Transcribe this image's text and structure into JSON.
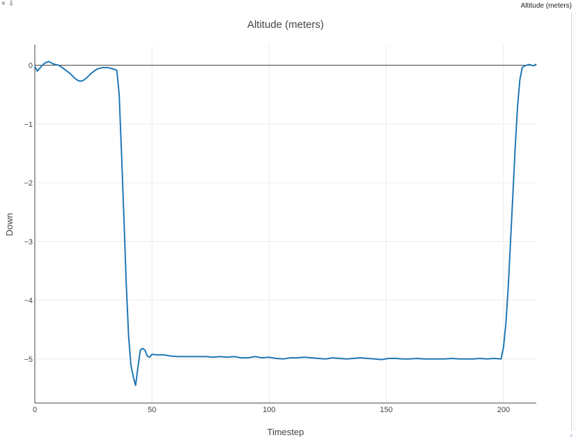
{
  "window": {
    "label": "Altitude (meters)",
    "close_icon": "x-icon",
    "dock_icon": "pin-down-icon",
    "resize_icon": "resize-grip-icon"
  },
  "chart_data": {
    "type": "line",
    "title": "Altitude (meters)",
    "xlabel": "Timestep",
    "ylabel": "Down",
    "xlim": [
      0,
      214
    ],
    "ylim": [
      -5.75,
      0.35
    ],
    "xticks": [
      0,
      50,
      100,
      150,
      200
    ],
    "yticks": [
      0,
      -1,
      -2,
      -3,
      -4,
      -5
    ],
    "ytick_labels": [
      "0",
      "−1",
      "−2",
      "−3",
      "−4",
      "−5"
    ],
    "grid": true,
    "line_color": "#1f77b4",
    "zero_line": true,
    "series": [
      {
        "x": [
          0,
          1,
          2,
          3,
          4,
          5,
          6,
          7,
          8,
          9,
          10,
          11,
          12,
          13,
          14,
          15,
          16,
          17,
          18,
          19,
          20,
          21,
          22,
          23,
          24,
          25,
          26,
          27,
          28,
          29,
          30,
          31,
          32,
          33,
          34,
          35,
          36,
          37,
          38,
          39,
          40,
          41,
          42,
          43,
          44,
          45,
          46,
          47,
          48,
          49,
          50,
          52,
          55,
          58,
          61,
          64,
          67,
          70,
          73,
          76,
          79,
          82,
          85,
          88,
          91,
          94,
          97,
          100,
          103,
          106,
          109,
          112,
          115,
          118,
          121,
          124,
          127,
          130,
          133,
          136,
          139,
          142,
          145,
          148,
          151,
          154,
          157,
          160,
          163,
          166,
          169,
          172,
          175,
          178,
          181,
          184,
          187,
          190,
          193,
          196,
          199,
          200,
          201,
          202,
          203,
          204,
          205,
          206,
          207,
          208,
          209,
          210,
          211,
          212,
          213,
          214
        ],
        "y": [
          -0.02,
          -0.1,
          -0.06,
          -0.01,
          0.03,
          0.05,
          0.06,
          0.04,
          0.02,
          0.01,
          0.0,
          -0.02,
          -0.05,
          -0.08,
          -0.11,
          -0.14,
          -0.18,
          -0.22,
          -0.25,
          -0.27,
          -0.27,
          -0.25,
          -0.22,
          -0.18,
          -0.14,
          -0.11,
          -0.08,
          -0.06,
          -0.05,
          -0.04,
          -0.04,
          -0.04,
          -0.05,
          -0.06,
          -0.07,
          -0.09,
          -0.5,
          -1.5,
          -2.6,
          -3.7,
          -4.6,
          -5.1,
          -5.3,
          -5.45,
          -5.15,
          -4.85,
          -4.82,
          -4.85,
          -4.95,
          -4.97,
          -4.92,
          -4.93,
          -4.93,
          -4.95,
          -4.96,
          -4.96,
          -4.96,
          -4.96,
          -4.96,
          -4.97,
          -4.96,
          -4.97,
          -4.96,
          -4.98,
          -4.98,
          -4.96,
          -4.98,
          -4.97,
          -4.99,
          -5.0,
          -4.98,
          -4.98,
          -4.97,
          -4.98,
          -4.99,
          -5.0,
          -4.98,
          -4.99,
          -5.0,
          -4.99,
          -4.98,
          -4.99,
          -5.0,
          -5.01,
          -4.99,
          -4.99,
          -5.0,
          -5.0,
          -4.99,
          -5.0,
          -5.0,
          -5.0,
          -5.0,
          -4.99,
          -5.0,
          -5.0,
          -5.0,
          -4.99,
          -5.0,
          -4.99,
          -5.0,
          -4.8,
          -4.4,
          -3.8,
          -3.0,
          -2.2,
          -1.4,
          -0.7,
          -0.25,
          -0.04,
          -0.01,
          0.0,
          0.01,
          0.0,
          -0.01,
          0.02
        ]
      }
    ]
  }
}
